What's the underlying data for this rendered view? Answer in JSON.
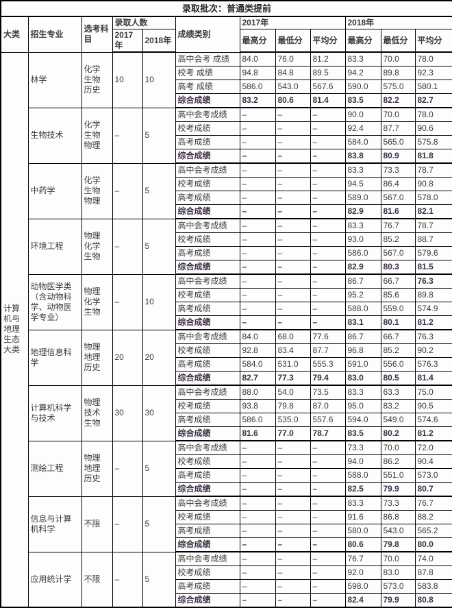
{
  "title": "录取批次：普通类提前",
  "headers": {
    "category": "大类",
    "major": "招生专业",
    "subjects": "选考科目",
    "admission_count": "录取人数",
    "year_2017": "2017年",
    "year_2018": "2018年",
    "score_type": "成绩类别",
    "max_score": "最高分",
    "min_score": "最低分",
    "avg_score": "平均分"
  },
  "category_label": "计算机与地理生态大类",
  "dash": "–",
  "colors": {
    "body_text": "#3a3a3a",
    "header_text": "#262626",
    "total_text": "#3d2e44",
    "border": "#000000",
    "background": "#fdfdfd"
  },
  "majors": [
    {
      "name": "林学",
      "subjects": "化学\n生物\n历史",
      "count_2017": "10",
      "count_2018": "10",
      "rows": [
        {
          "label": "高中会考 成绩",
          "values": [
            "84.0",
            "76.0",
            "81.2",
            "83.3",
            "70.0",
            "78.0"
          ]
        },
        {
          "label": "校考 成绩",
          "values": [
            "94.8",
            "84.8",
            "89.5",
            "94.2",
            "89.8",
            "92.3"
          ]
        },
        {
          "label": "高考 成绩",
          "values": [
            "586.0",
            "543.0",
            "567.6",
            "590.0",
            "575.0",
            "580.1"
          ]
        },
        {
          "label": "综合成绩",
          "values": [
            "83.2",
            "80.6",
            "81.4",
            "83.5",
            "82.2",
            "82.7"
          ],
          "emphasis": true
        }
      ]
    },
    {
      "name": "生物技术",
      "subjects": "化学\n生物\n物理",
      "count_2017": "–",
      "count_2018": "5",
      "rows": [
        {
          "label": "高中会考成绩",
          "values": [
            "–",
            "–",
            "–",
            "90.0",
            "70.0",
            "78.0"
          ]
        },
        {
          "label": "校考成绩",
          "values": [
            "–",
            "–",
            "–",
            "92.4",
            "87.7",
            "90.6"
          ]
        },
        {
          "label": "高考成绩",
          "values": [
            "–",
            "–",
            "–",
            "584.0",
            "565.0",
            "575.8"
          ]
        },
        {
          "label": "综合成绩",
          "values": [
            "–",
            "–",
            "–",
            "83.8",
            "80.9",
            "81.8"
          ],
          "emphasis": true
        }
      ]
    },
    {
      "name": "中药学",
      "subjects": "化学\n生物\n物理",
      "count_2017": "–",
      "count_2018": "5",
      "rows": [
        {
          "label": "高中会考成绩",
          "values": [
            "–",
            "–",
            "–",
            "83.3",
            "73.3",
            "78.7"
          ]
        },
        {
          "label": "校考成绩",
          "values": [
            "–",
            "–",
            "–",
            "94.5",
            "86.4",
            "90.8"
          ]
        },
        {
          "label": "高考成绩",
          "values": [
            "–",
            "–",
            "–",
            "589.0",
            "567.0",
            "578.0"
          ]
        },
        {
          "label": "综合成绩",
          "values": [
            "–",
            "–",
            "–",
            "82.9",
            "81.6",
            "82.1"
          ],
          "emphasis": true
        }
      ]
    },
    {
      "name": "环境工程",
      "subjects": "物理\n化学\n生物",
      "count_2017": "–",
      "count_2018": "5",
      "rows": [
        {
          "label": "高中会考成绩",
          "values": [
            "–",
            "–",
            "–",
            "83.3",
            "76.7",
            "78.7"
          ]
        },
        {
          "label": "校考成绩",
          "values": [
            "–",
            "–",
            "–",
            "93.0",
            "85.2",
            "88.7"
          ]
        },
        {
          "label": "高考成绩",
          "values": [
            "–",
            "–",
            "–",
            "586.0",
            "567.0",
            "579.6"
          ]
        },
        {
          "label": "综合成绩",
          "values": [
            "–",
            "–",
            "–",
            "82.9",
            "80.3",
            "81.5"
          ],
          "emphasis": true
        }
      ]
    },
    {
      "name": "动物医学类（含动物科学、动物医学专业）",
      "subjects": "物理\n化学\n生物",
      "count_2017": "–",
      "count_2018": "10",
      "rows": [
        {
          "label": "高中会考成绩",
          "values": [
            "–",
            "–",
            "–",
            "86.7",
            "66.7",
            "76.3"
          ],
          "bold_values": [
            5
          ]
        },
        {
          "label": "校考成绩",
          "values": [
            "–",
            "–",
            "–",
            "95.2",
            "85.6",
            "89.8"
          ]
        },
        {
          "label": "高考成绩",
          "values": [
            "–",
            "–",
            "–",
            "588.0",
            "559.0",
            "574.9"
          ]
        },
        {
          "label": "综合成绩",
          "values": [
            "–",
            "–",
            "–",
            "83.1",
            "80.1",
            "81.2"
          ],
          "emphasis": true
        }
      ]
    },
    {
      "name": "地理信息科学",
      "subjects": "物理\n地理\n历史",
      "count_2017": "20",
      "count_2018": "20",
      "rows": [
        {
          "label": "高中会考成绩",
          "values": [
            "84.0",
            "68.0",
            "77.6",
            "86.7",
            "66.7",
            "76.3"
          ]
        },
        {
          "label": "校考成绩",
          "values": [
            "92.8",
            "83.4",
            "87.7",
            "96.8",
            "85.2",
            "90.2"
          ]
        },
        {
          "label": "高考成绩",
          "values": [
            "584.0",
            "531.0",
            "555.3",
            "591.0",
            "556.0",
            "576.3"
          ]
        },
        {
          "label": "综合成绩",
          "values": [
            "82.7",
            "77.3",
            "79.4",
            "83.0",
            "80.5",
            "81.4"
          ],
          "emphasis": true
        }
      ]
    },
    {
      "name": "计算机科学与技术",
      "subjects": "物理\n技术\n生物",
      "count_2017": "30",
      "count_2018": "30",
      "rows": [
        {
          "label": "高中会考成绩",
          "values": [
            "88.0",
            "54.0",
            "73.5",
            "83.3",
            "63.3",
            "75.0"
          ]
        },
        {
          "label": "校考成绩",
          "values": [
            "93.8",
            "79.8",
            "87.0",
            "95.0",
            "83.2",
            "90.5"
          ]
        },
        {
          "label": "高考成绩",
          "values": [
            "586.0",
            "535.0",
            "557.6",
            "594.0",
            "549.0",
            "574.6"
          ]
        },
        {
          "label": "综合成绩",
          "values": [
            "81.6",
            "77.0",
            "78.7",
            "83.5",
            "80.2",
            "81.2"
          ],
          "emphasis": true
        }
      ]
    },
    {
      "name": "测绘工程",
      "subjects": "物理\n地理\n历史",
      "count_2017": "–",
      "count_2018": "5",
      "rows": [
        {
          "label": "高中会考成绩",
          "values": [
            "–",
            "–",
            "–",
            "73.3",
            "70.0",
            "72.0"
          ]
        },
        {
          "label": "校考成绩",
          "values": [
            "–",
            "–",
            "–",
            "94.0",
            "86.2",
            "90.4"
          ]
        },
        {
          "label": "高考成绩",
          "values": [
            "–",
            "–",
            "–",
            "588.0",
            "551.0",
            "573.0"
          ]
        },
        {
          "label": "综合成绩",
          "values": [
            "–",
            "–",
            "–",
            "82.5",
            "79.9",
            "80.7"
          ],
          "emphasis": true
        }
      ]
    },
    {
      "name": "信息与计算机科学",
      "subjects": "不限",
      "count_2017": "–",
      "count_2018": "5",
      "rows": [
        {
          "label": "高中会考成绩",
          "values": [
            "–",
            "–",
            "–",
            "83.3",
            "73.3",
            "76.7"
          ]
        },
        {
          "label": "校考成绩",
          "values": [
            "–",
            "–",
            "–",
            "91.6",
            "86.8",
            "88.2"
          ]
        },
        {
          "label": "高考成绩",
          "values": [
            "–",
            "–",
            "–",
            "580.0",
            "543.0",
            "565.2"
          ]
        },
        {
          "label": "综合成绩",
          "values": [
            "–",
            "–",
            "–",
            "80.6",
            "79.8",
            "80.0"
          ],
          "emphasis": true
        }
      ]
    },
    {
      "name": "应用统计学",
      "subjects": "不限",
      "count_2017": "–",
      "count_2018": "5",
      "rows": [
        {
          "label": "高中会考成绩",
          "values": [
            "–",
            "–",
            "–",
            "76.7",
            "70.0",
            "74.0"
          ]
        },
        {
          "label": "校考成绩",
          "values": [
            "–",
            "–",
            "–",
            "92.0",
            "83.0",
            "87.8"
          ]
        },
        {
          "label": "高考成绩",
          "values": [
            "–",
            "–",
            "–",
            "598.0",
            "573.0",
            "583.8"
          ]
        },
        {
          "label": "综合成绩",
          "values": [
            "–",
            "–",
            "–",
            "82.4",
            "79.9",
            "80.8"
          ],
          "emphasis": true
        }
      ]
    }
  ]
}
